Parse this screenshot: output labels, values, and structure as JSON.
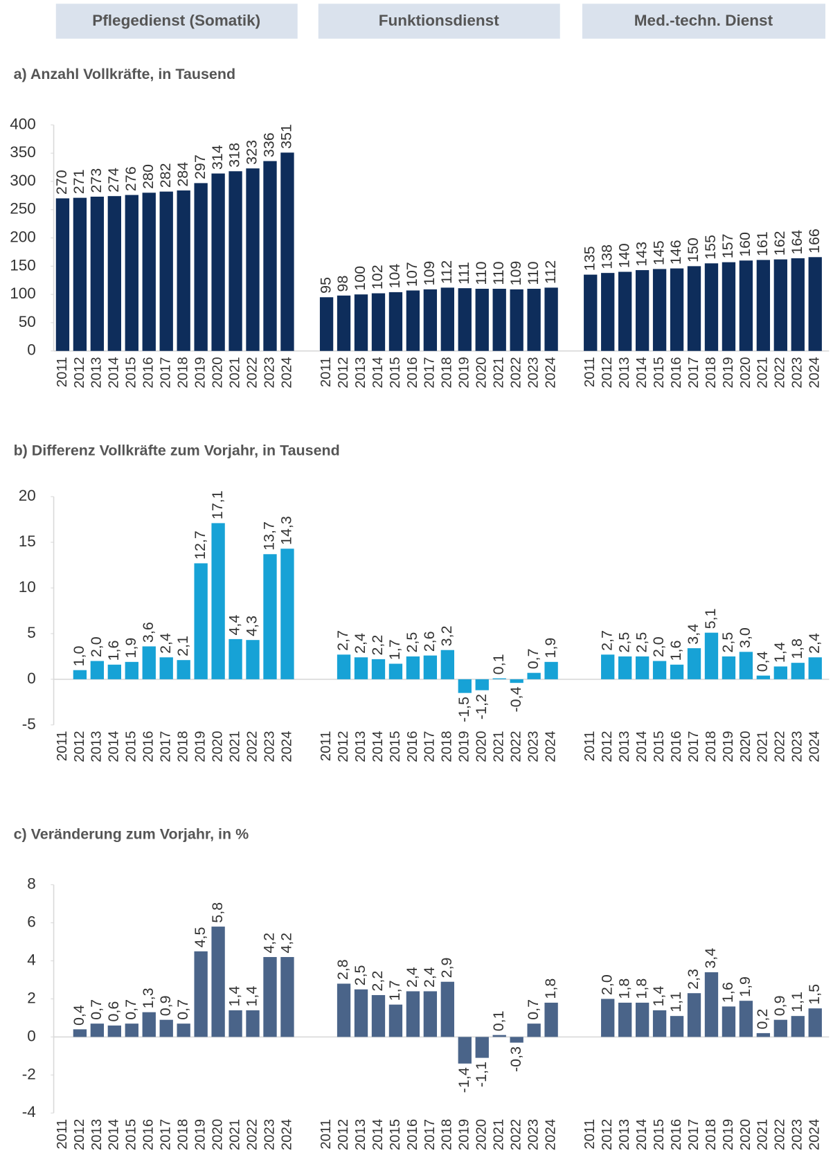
{
  "groups": [
    "Pflegedienst (Somatik)",
    "Funktionsdienst",
    "Med.-techn. Dienst"
  ],
  "chart_data": [
    {
      "type": "bar",
      "title": "a) Anzahl Vollkräfte, in Tausend",
      "color": "#0e2d5b",
      "categories": [
        "2011",
        "2012",
        "2013",
        "2014",
        "2015",
        "2016",
        "2017",
        "2018",
        "2019",
        "2020",
        "2021",
        "2022",
        "2023",
        "2024"
      ],
      "ylim": [
        0,
        400
      ],
      "yticks": [
        0,
        50,
        100,
        150,
        200,
        250,
        300,
        350,
        400
      ],
      "series": [
        {
          "values": [
            270,
            271,
            273,
            274,
            276,
            280,
            282,
            284,
            297,
            314,
            318,
            323,
            336,
            351
          ]
        },
        {
          "values": [
            95,
            98,
            100,
            102,
            104,
            107,
            109,
            112,
            111,
            110,
            110,
            109,
            110,
            112
          ]
        },
        {
          "values": [
            135,
            138,
            140,
            143,
            145,
            146,
            150,
            155,
            157,
            160,
            161,
            162,
            164,
            166
          ]
        }
      ]
    },
    {
      "type": "bar",
      "title": "b)  Differenz Vollkräfte zum Vorjahr, in Tausend",
      "color": "#17a2d6",
      "categories": [
        "2011",
        "2012",
        "2013",
        "2014",
        "2015",
        "2016",
        "2017",
        "2018",
        "2019",
        "2020",
        "2021",
        "2022",
        "2023",
        "2024"
      ],
      "ylim": [
        -5,
        20
      ],
      "yticks": [
        -5,
        0,
        5,
        10,
        15,
        20
      ],
      "series": [
        {
          "values": [
            null,
            1.0,
            2.0,
            1.6,
            1.9,
            3.6,
            2.4,
            2.1,
            12.7,
            17.1,
            4.4,
            4.3,
            13.7,
            14.3
          ],
          "value_labels": [
            null,
            "1,0",
            "2,0",
            "1,6",
            "1,9",
            "3,6",
            "2,4",
            "2,1",
            "12,7",
            "17,1",
            "4,4",
            "4,3",
            "13,7",
            "14,3"
          ]
        },
        {
          "values": [
            null,
            2.7,
            2.4,
            2.2,
            1.7,
            2.5,
            2.6,
            3.2,
            -1.5,
            -1.2,
            0.1,
            -0.4,
            0.7,
            1.9
          ],
          "value_labels": [
            null,
            "2,7",
            "2,4",
            "2,2",
            "1,7",
            "2,5",
            "2,6",
            "3,2",
            "-1,5",
            "-1,2",
            "0,1",
            "-0,4",
            "0,7",
            "1,9"
          ]
        },
        {
          "values": [
            null,
            2.7,
            2.5,
            2.5,
            2.0,
            1.6,
            3.4,
            5.1,
            2.5,
            3.0,
            0.4,
            1.4,
            1.8,
            2.4
          ],
          "value_labels": [
            null,
            "2,7",
            "2,5",
            "2,5",
            "2,0",
            "1,6",
            "3,4",
            "5,1",
            "2,5",
            "3,0",
            "0,4",
            "1,4",
            "1,8",
            "2,4"
          ]
        }
      ]
    },
    {
      "type": "bar",
      "title": "c) Veränderung zum Vorjahr, in %",
      "color": "#4a6489",
      "categories": [
        "2011",
        "2012",
        "2013",
        "2014",
        "2015",
        "2016",
        "2017",
        "2018",
        "2019",
        "2020",
        "2021",
        "2022",
        "2023",
        "2024"
      ],
      "ylim": [
        -4,
        8
      ],
      "yticks": [
        -4,
        -2,
        0,
        2,
        4,
        6,
        8
      ],
      "series": [
        {
          "values": [
            null,
            0.4,
            0.7,
            0.6,
            0.7,
            1.3,
            0.9,
            0.7,
            4.5,
            5.8,
            1.4,
            1.4,
            4.2,
            4.2
          ],
          "value_labels": [
            null,
            "0,4",
            "0,7",
            "0,6",
            "0,7",
            "1,3",
            "0,9",
            "0,7",
            "4,5",
            "5,8",
            "1,4",
            "1,4",
            "4,2",
            "4,2"
          ]
        },
        {
          "values": [
            null,
            2.8,
            2.5,
            2.2,
            1.7,
            2.4,
            2.4,
            2.9,
            -1.4,
            -1.1,
            0.1,
            -0.3,
            0.7,
            1.8
          ],
          "value_labels": [
            null,
            "2,8",
            "2,5",
            "2,2",
            "1,7",
            "2,4",
            "2,4",
            "2,9",
            "-1,4",
            "-1,1",
            "0,1",
            "-0,3",
            "0,7",
            "1,8"
          ]
        },
        {
          "values": [
            null,
            2.0,
            1.8,
            1.8,
            1.4,
            1.1,
            2.3,
            3.4,
            1.6,
            1.9,
            0.2,
            0.9,
            1.1,
            1.5
          ],
          "value_labels": [
            null,
            "2,0",
            "1,8",
            "1,8",
            "1,4",
            "1,1",
            "2,3",
            "3,4",
            "1,6",
            "1,9",
            "0,2",
            "0,9",
            "1,1",
            "1,5"
          ]
        }
      ]
    }
  ]
}
